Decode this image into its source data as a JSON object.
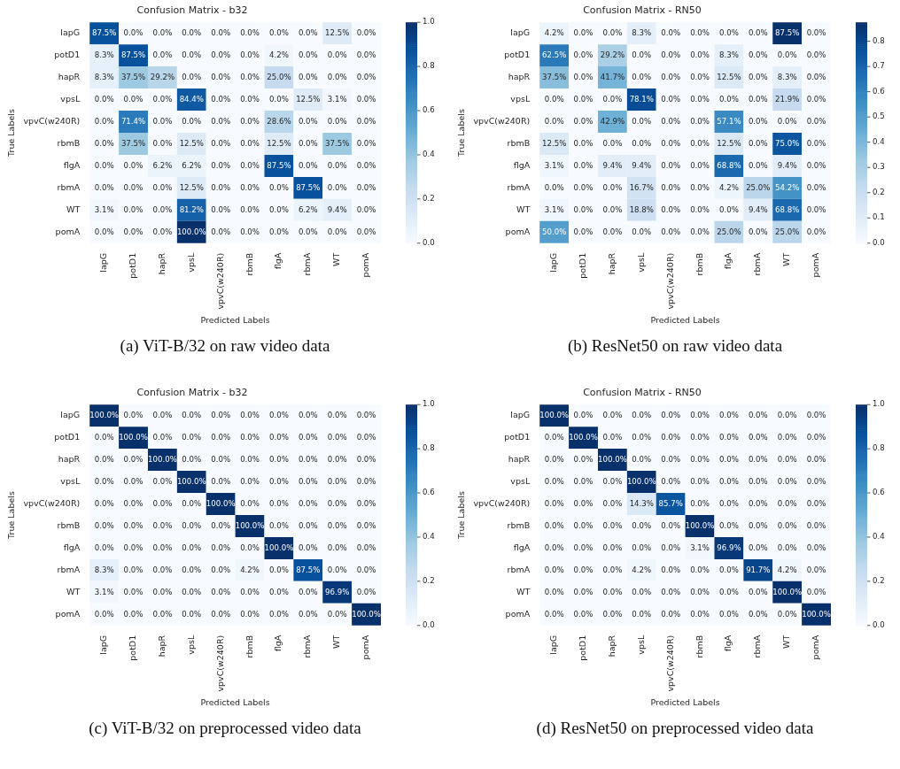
{
  "chart_data": [
    {
      "type": "heatmap",
      "title": "Confusion Matrix - b32",
      "xlabel": "Predicted Labels",
      "ylabel": "True Labels",
      "categories": [
        "lapG",
        "potD1",
        "hapR",
        "vpsL",
        "vpvC(w240R)",
        "rbmB",
        "flgA",
        "rbmA",
        "WT",
        "pomA"
      ],
      "y_categories": [
        "lapG",
        "potD1",
        "hapR",
        "vpsL",
        "vpvC(w240R)",
        "rbmB",
        "flgA",
        "rbmA",
        "WT",
        "pomA"
      ],
      "cells": [
        [
          0.875,
          0,
          0,
          0,
          0,
          0,
          0,
          0,
          0.125,
          0
        ],
        [
          0.083,
          0.875,
          0,
          0,
          0,
          0,
          0.042,
          0,
          0,
          0
        ],
        [
          0.083,
          0.375,
          0.292,
          0,
          0,
          0,
          0.25,
          0,
          0,
          0
        ],
        [
          0,
          0,
          0,
          0.844,
          0,
          0,
          0,
          0.125,
          0.031,
          0
        ],
        [
          0,
          0.714,
          0,
          0,
          0,
          0,
          0.286,
          0,
          0,
          0
        ],
        [
          0,
          0.375,
          0,
          0.125,
          0,
          0,
          0.125,
          0,
          0.375,
          0
        ],
        [
          0,
          0,
          0.062,
          0.062,
          0,
          0,
          0.875,
          0,
          0,
          0
        ],
        [
          0,
          0,
          0,
          0.125,
          0,
          0,
          0,
          0.875,
          0,
          0
        ],
        [
          0.031,
          0,
          0,
          0.812,
          0,
          0,
          0,
          0.062,
          0.094,
          0
        ],
        [
          0,
          0,
          0,
          1,
          0,
          0,
          0,
          0,
          0,
          0
        ]
      ],
      "cell_labels": [
        [
          "87.5%",
          "0.0%",
          "0.0%",
          "0.0%",
          "0.0%",
          "0.0%",
          "0.0%",
          "0.0%",
          "12.5%",
          "0.0%"
        ],
        [
          "8.3%",
          "87.5%",
          "0.0%",
          "0.0%",
          "0.0%",
          "0.0%",
          "4.2%",
          "0.0%",
          "0.0%",
          "0.0%"
        ],
        [
          "8.3%",
          "37.5%",
          "29.2%",
          "0.0%",
          "0.0%",
          "0.0%",
          "25.0%",
          "0.0%",
          "0.0%",
          "0.0%"
        ],
        [
          "0.0%",
          "0.0%",
          "0.0%",
          "84.4%",
          "0.0%",
          "0.0%",
          "0.0%",
          "12.5%",
          "3.1%",
          "0.0%"
        ],
        [
          "0.0%",
          "71.4%",
          "0.0%",
          "0.0%",
          "0.0%",
          "0.0%",
          "28.6%",
          "0.0%",
          "0.0%",
          "0.0%"
        ],
        [
          "0.0%",
          "37.5%",
          "0.0%",
          "12.5%",
          "0.0%",
          "0.0%",
          "12.5%",
          "0.0%",
          "37.5%",
          "0.0%"
        ],
        [
          "0.0%",
          "0.0%",
          "6.2%",
          "6.2%",
          "0.0%",
          "0.0%",
          "87.5%",
          "0.0%",
          "0.0%",
          "0.0%"
        ],
        [
          "0.0%",
          "0.0%",
          "0.0%",
          "12.5%",
          "0.0%",
          "0.0%",
          "0.0%",
          "87.5%",
          "0.0%",
          "0.0%"
        ],
        [
          "3.1%",
          "0.0%",
          "0.0%",
          "81.2%",
          "0.0%",
          "0.0%",
          "0.0%",
          "6.2%",
          "9.4%",
          "0.0%"
        ],
        [
          "0.0%",
          "0.0%",
          "0.0%",
          "100.0%",
          "0.0%",
          "0.0%",
          "0.0%",
          "0.0%",
          "0.0%",
          "0.0%"
        ]
      ],
      "clim": [
        0,
        1
      ],
      "cticks": [
        {
          "value": 0,
          "label": "0.0"
        },
        {
          "value": 0.2,
          "label": "0.2"
        },
        {
          "value": 0.4,
          "label": "0.4"
        },
        {
          "value": 0.6,
          "label": "0.6"
        },
        {
          "value": 0.8,
          "label": "0.8"
        },
        {
          "value": 1,
          "label": "1.0"
        }
      ],
      "annotations": [
        "(a) ViT-B/32 on raw video data"
      ]
    },
    {
      "type": "heatmap",
      "title": "Confusion Matrix - RN50",
      "xlabel": "Predicted Labels",
      "ylabel": "True Labels",
      "categories": [
        "lapG",
        "potD1",
        "hapR",
        "vpsL",
        "vpvC(w240R)",
        "rbmB",
        "flgA",
        "rbmA",
        "WT",
        "pomA"
      ],
      "y_categories": [
        "lapG",
        "potD1",
        "hapR",
        "vpsL",
        "vpvC(w240R)",
        "rbmB",
        "flgA",
        "rbmA",
        "WT",
        "pomA"
      ],
      "cells": [
        [
          0.042,
          0,
          0,
          0.083,
          0,
          0,
          0,
          0,
          0.875,
          0
        ],
        [
          0.625,
          0,
          0.292,
          0,
          0,
          0,
          0.083,
          0,
          0,
          0
        ],
        [
          0.375,
          0,
          0.417,
          0,
          0,
          0,
          0.125,
          0,
          0.083,
          0
        ],
        [
          0,
          0,
          0,
          0.781,
          0,
          0,
          0,
          0,
          0.219,
          0
        ],
        [
          0,
          0,
          0.429,
          0,
          0,
          0,
          0.571,
          0,
          0,
          0
        ],
        [
          0.125,
          0,
          0,
          0,
          0,
          0,
          0.125,
          0,
          0.75,
          0
        ],
        [
          0.031,
          0,
          0.094,
          0.094,
          0,
          0,
          0.688,
          0,
          0.094,
          0
        ],
        [
          0,
          0,
          0,
          0.167,
          0,
          0,
          0.042,
          0.25,
          0.542,
          0
        ],
        [
          0.031,
          0,
          0,
          0.188,
          0,
          0,
          0,
          0.094,
          0.688,
          0
        ],
        [
          0.5,
          0,
          0,
          0,
          0,
          0,
          0.25,
          0,
          0.25,
          0
        ]
      ],
      "cell_labels": [
        [
          "4.2%",
          "0.0%",
          "0.0%",
          "8.3%",
          "0.0%",
          "0.0%",
          "0.0%",
          "0.0%",
          "87.5%",
          "0.0%"
        ],
        [
          "62.5%",
          "0.0%",
          "29.2%",
          "0.0%",
          "0.0%",
          "0.0%",
          "8.3%",
          "0.0%",
          "0.0%",
          "0.0%"
        ],
        [
          "37.5%",
          "0.0%",
          "41.7%",
          "0.0%",
          "0.0%",
          "0.0%",
          "12.5%",
          "0.0%",
          "8.3%",
          "0.0%"
        ],
        [
          "0.0%",
          "0.0%",
          "0.0%",
          "78.1%",
          "0.0%",
          "0.0%",
          "0.0%",
          "0.0%",
          "21.9%",
          "0.0%"
        ],
        [
          "0.0%",
          "0.0%",
          "42.9%",
          "0.0%",
          "0.0%",
          "0.0%",
          "57.1%",
          "0.0%",
          "0.0%",
          "0.0%"
        ],
        [
          "12.5%",
          "0.0%",
          "0.0%",
          "0.0%",
          "0.0%",
          "0.0%",
          "12.5%",
          "0.0%",
          "75.0%",
          "0.0%"
        ],
        [
          "3.1%",
          "0.0%",
          "9.4%",
          "9.4%",
          "0.0%",
          "0.0%",
          "68.8%",
          "0.0%",
          "9.4%",
          "0.0%"
        ],
        [
          "0.0%",
          "0.0%",
          "0.0%",
          "16.7%",
          "0.0%",
          "0.0%",
          "4.2%",
          "25.0%",
          "54.2%",
          "0.0%"
        ],
        [
          "3.1%",
          "0.0%",
          "0.0%",
          "18.8%",
          "0.0%",
          "0.0%",
          "0.0%",
          "9.4%",
          "68.8%",
          "0.0%"
        ],
        [
          "50.0%",
          "0.0%",
          "0.0%",
          "0.0%",
          "0.0%",
          "0.0%",
          "25.0%",
          "0.0%",
          "25.0%",
          "0.0%"
        ]
      ],
      "clim": [
        0,
        0.875
      ],
      "cticks": [
        {
          "value": 0,
          "label": "0.0"
        },
        0.1,
        0.2,
        0.3,
        0.4,
        0.5,
        0.6,
        0.7,
        0.8
      ],
      "annotations": [
        "(b) ResNet50 on raw video data"
      ]
    },
    {
      "type": "heatmap",
      "title": "Confusion Matrix - b32",
      "xlabel": "Predicted Labels",
      "ylabel": "True Labels",
      "categories": [
        "lapG",
        "potD1",
        "hapR",
        "vpsL",
        "vpvC(w240R)",
        "rbmB",
        "flgA",
        "rbmA",
        "WT",
        "pomA"
      ],
      "y_categories": [
        "lapG",
        "potD1",
        "hapR",
        "vpsL",
        "vpvC(w240R)",
        "rbmB",
        "flgA",
        "rbmA",
        "WT",
        "pomA"
      ],
      "cells": [
        [
          1,
          0,
          0,
          0,
          0,
          0,
          0,
          0,
          0,
          0
        ],
        [
          0,
          1,
          0,
          0,
          0,
          0,
          0,
          0,
          0,
          0
        ],
        [
          0,
          0,
          1,
          0,
          0,
          0,
          0,
          0,
          0,
          0
        ],
        [
          0,
          0,
          0,
          1,
          0,
          0,
          0,
          0,
          0,
          0
        ],
        [
          0,
          0,
          0,
          0,
          1,
          0,
          0,
          0,
          0,
          0
        ],
        [
          0,
          0,
          0,
          0,
          0,
          1,
          0,
          0,
          0,
          0
        ],
        [
          0,
          0,
          0,
          0,
          0,
          0,
          1,
          0,
          0,
          0
        ],
        [
          0.083,
          0,
          0,
          0,
          0,
          0.042,
          0,
          0.875,
          0,
          0
        ],
        [
          0.031,
          0,
          0,
          0,
          0,
          0,
          0,
          0,
          0.969,
          0
        ],
        [
          0,
          0,
          0,
          0,
          0,
          0,
          0,
          0,
          0,
          1
        ]
      ],
      "cell_labels": [
        [
          "100.0%",
          "0.0%",
          "0.0%",
          "0.0%",
          "0.0%",
          "0.0%",
          "0.0%",
          "0.0%",
          "0.0%",
          "0.0%"
        ],
        [
          "0.0%",
          "100.0%",
          "0.0%",
          "0.0%",
          "0.0%",
          "0.0%",
          "0.0%",
          "0.0%",
          "0.0%",
          "0.0%"
        ],
        [
          "0.0%",
          "0.0%",
          "100.0%",
          "0.0%",
          "0.0%",
          "0.0%",
          "0.0%",
          "0.0%",
          "0.0%",
          "0.0%"
        ],
        [
          "0.0%",
          "0.0%",
          "0.0%",
          "100.0%",
          "0.0%",
          "0.0%",
          "0.0%",
          "0.0%",
          "0.0%",
          "0.0%"
        ],
        [
          "0.0%",
          "0.0%",
          "0.0%",
          "0.0%",
          "100.0%",
          "0.0%",
          "0.0%",
          "0.0%",
          "0.0%",
          "0.0%"
        ],
        [
          "0.0%",
          "0.0%",
          "0.0%",
          "0.0%",
          "0.0%",
          "100.0%",
          "0.0%",
          "0.0%",
          "0.0%",
          "0.0%"
        ],
        [
          "0.0%",
          "0.0%",
          "0.0%",
          "0.0%",
          "0.0%",
          "0.0%",
          "100.0%",
          "0.0%",
          "0.0%",
          "0.0%"
        ],
        [
          "8.3%",
          "0.0%",
          "0.0%",
          "0.0%",
          "0.0%",
          "4.2%",
          "0.0%",
          "87.5%",
          "0.0%",
          "0.0%"
        ],
        [
          "3.1%",
          "0.0%",
          "0.0%",
          "0.0%",
          "0.0%",
          "0.0%",
          "0.0%",
          "0.0%",
          "96.9%",
          "0.0%"
        ],
        [
          "0.0%",
          "0.0%",
          "0.0%",
          "0.0%",
          "0.0%",
          "0.0%",
          "0.0%",
          "0.0%",
          "0.0%",
          "100.0%"
        ]
      ],
      "clim": [
        0,
        1
      ],
      "cticks": [
        {
          "value": 0,
          "label": "0.0"
        },
        0.2,
        0.4,
        0.6,
        0.8,
        {
          "value": 1,
          "label": "1.0"
        }
      ],
      "annotations": [
        "(c) ViT-B/32 on preprocessed video data"
      ]
    },
    {
      "type": "heatmap",
      "title": "Confusion Matrix - RN50",
      "xlabel": "Predicted Labels",
      "ylabel": "True Labels",
      "categories": [
        "lapG",
        "potD1",
        "hapR",
        "vpsL",
        "vpvC(w240R)",
        "rbmB",
        "flgA",
        "rbmA",
        "WT",
        "pomA"
      ],
      "y_categories": [
        "lapG",
        "potD1",
        "hapR",
        "vpsL",
        "vpvC(w240R)",
        "rbmB",
        "flgA",
        "rbmA",
        "WT",
        "pomA"
      ],
      "cells": [
        [
          1,
          0,
          0,
          0,
          0,
          0,
          0,
          0,
          0,
          0
        ],
        [
          0,
          1,
          0,
          0,
          0,
          0,
          0,
          0,
          0,
          0
        ],
        [
          0,
          0,
          1,
          0,
          0,
          0,
          0,
          0,
          0,
          0
        ],
        [
          0,
          0,
          0,
          1,
          0,
          0,
          0,
          0,
          0,
          0
        ],
        [
          0,
          0,
          0,
          0.143,
          0.857,
          0,
          0,
          0,
          0,
          0
        ],
        [
          0,
          0,
          0,
          0,
          0,
          1,
          0,
          0,
          0,
          0
        ],
        [
          0,
          0,
          0,
          0,
          0,
          0.031,
          0.969,
          0,
          0,
          0
        ],
        [
          0,
          0,
          0,
          0.042,
          0,
          0,
          0,
          0.917,
          0.042,
          0
        ],
        [
          0,
          0,
          0,
          0,
          0,
          0,
          0,
          0,
          1,
          0
        ],
        [
          0,
          0,
          0,
          0,
          0,
          0,
          0,
          0,
          0,
          1
        ]
      ],
      "cell_labels": [
        [
          "100.0%",
          "0.0%",
          "0.0%",
          "0.0%",
          "0.0%",
          "0.0%",
          "0.0%",
          "0.0%",
          "0.0%",
          "0.0%"
        ],
        [
          "0.0%",
          "100.0%",
          "0.0%",
          "0.0%",
          "0.0%",
          "0.0%",
          "0.0%",
          "0.0%",
          "0.0%",
          "0.0%"
        ],
        [
          "0.0%",
          "0.0%",
          "100.0%",
          "0.0%",
          "0.0%",
          "0.0%",
          "0.0%",
          "0.0%",
          "0.0%",
          "0.0%"
        ],
        [
          "0.0%",
          "0.0%",
          "0.0%",
          "100.0%",
          "0.0%",
          "0.0%",
          "0.0%",
          "0.0%",
          "0.0%",
          "0.0%"
        ],
        [
          "0.0%",
          "0.0%",
          "0.0%",
          "14.3%",
          "85.7%",
          "0.0%",
          "0.0%",
          "0.0%",
          "0.0%",
          "0.0%"
        ],
        [
          "0.0%",
          "0.0%",
          "0.0%",
          "0.0%",
          "0.0%",
          "100.0%",
          "0.0%",
          "0.0%",
          "0.0%",
          "0.0%"
        ],
        [
          "0.0%",
          "0.0%",
          "0.0%",
          "0.0%",
          "0.0%",
          "3.1%",
          "96.9%",
          "0.0%",
          "0.0%",
          "0.0%"
        ],
        [
          "0.0%",
          "0.0%",
          "0.0%",
          "4.2%",
          "0.0%",
          "0.0%",
          "0.0%",
          "91.7%",
          "4.2%",
          "0.0%"
        ],
        [
          "0.0%",
          "0.0%",
          "0.0%",
          "0.0%",
          "0.0%",
          "0.0%",
          "0.0%",
          "0.0%",
          "100.0%",
          "0.0%"
        ],
        [
          "0.0%",
          "0.0%",
          "0.0%",
          "0.0%",
          "0.0%",
          "0.0%",
          "0.0%",
          "0.0%",
          "0.0%",
          "100.0%"
        ]
      ],
      "clim": [
        0,
        1
      ],
      "cticks": [
        {
          "value": 0,
          "label": "0.0"
        },
        0.2,
        0.4,
        0.6,
        0.8,
        {
          "value": 1,
          "label": "1.0"
        }
      ],
      "annotations": [
        "(d) ResNet50 on preprocessed video data"
      ]
    }
  ]
}
